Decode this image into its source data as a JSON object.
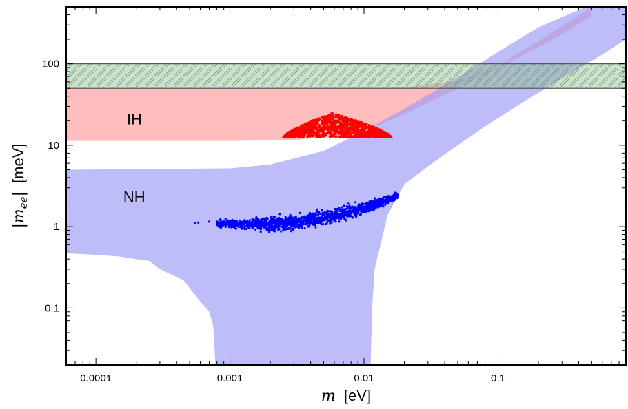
{
  "chart_data": {
    "type": "scatter",
    "xscale": "log",
    "yscale": "log",
    "xlim": [
      6e-05,
      0.9
    ],
    "ylim": [
      0.02,
      500
    ],
    "xlabel_symbol": "m",
    "xlabel_unit": "[eV]",
    "ylabel_symbol": "|m",
    "ylabel_sub": "ee",
    "ylabel_close": "|",
    "ylabel_unit": "[meV]",
    "x_ticks": [
      {
        "value": 0.0001,
        "label": "0.0001"
      },
      {
        "value": 0.001,
        "label": "0.001"
      },
      {
        "value": 0.01,
        "label": "0.01"
      },
      {
        "value": 0.1,
        "label": "0.1"
      }
    ],
    "y_ticks": [
      {
        "value": 0.1,
        "label": "0.1"
      },
      {
        "value": 1,
        "label": "1"
      },
      {
        "value": 10,
        "label": "10"
      },
      {
        "value": 100,
        "label": "100"
      }
    ],
    "region_labels": [
      {
        "text": "IH",
        "x": 0.00017,
        "y": 18
      },
      {
        "text": "NH",
        "x": 0.00016,
        "y": 2.0
      }
    ],
    "bands": [
      {
        "name": "IH",
        "color": "#ff9a9a",
        "opacity": 0.65,
        "upper": [
          [
            6e-05,
            50
          ],
          [
            0.003,
            50
          ],
          [
            0.02,
            51
          ],
          [
            0.05,
            62
          ],
          [
            0.1,
            95
          ],
          [
            0.2,
            190
          ],
          [
            0.5,
            500
          ]
        ],
        "lower": [
          [
            6e-05,
            11.3
          ],
          [
            0.001,
            11.3
          ],
          [
            0.003,
            11.6
          ],
          [
            0.006,
            12.8
          ],
          [
            0.01,
            15
          ],
          [
            0.02,
            24
          ],
          [
            0.05,
            50
          ],
          [
            0.1,
            88
          ],
          [
            0.3,
            230
          ],
          [
            0.5,
            390
          ]
        ]
      },
      {
        "name": "NH",
        "color": "#9a9af8",
        "opacity": 0.65,
        "upper": [
          [
            6e-05,
            5.0
          ],
          [
            0.001,
            5.2
          ],
          [
            0.002,
            5.8
          ],
          [
            0.005,
            8.5
          ],
          [
            0.01,
            15
          ],
          [
            0.02,
            28
          ],
          [
            0.05,
            68
          ],
          [
            0.1,
            140
          ],
          [
            0.2,
            280
          ],
          [
            0.45,
            500
          ]
        ],
        "lower": [
          [
            0.9,
            200
          ],
          [
            0.6,
            130
          ],
          [
            0.4,
            88
          ],
          [
            0.25,
            55
          ],
          [
            0.15,
            33
          ],
          [
            0.08,
            17
          ],
          [
            0.05,
            10
          ],
          [
            0.03,
            5.5
          ],
          [
            0.02,
            3.3
          ],
          [
            0.015,
            1.4
          ],
          [
            0.012,
            0.3
          ],
          [
            0.0115,
            0.1
          ],
          [
            0.0112,
            0.02
          ],
          [
            0.00078,
            0.02
          ],
          [
            0.00075,
            0.06
          ],
          [
            0.0007,
            0.09
          ],
          [
            0.0006,
            0.12
          ],
          [
            0.00045,
            0.22
          ],
          [
            0.0003,
            0.3
          ],
          [
            0.00025,
            0.38
          ],
          [
            0.0002,
            0.4
          ],
          [
            0.00015,
            0.43
          ],
          [
            0.0001,
            0.45
          ],
          [
            6e-05,
            0.47
          ]
        ]
      }
    ],
    "hatched_band": {
      "y_low": 50,
      "y_high": 100,
      "color": "#8fbf8f",
      "opacity": 0.45
    },
    "series": [
      {
        "name": "IH points",
        "color": "#ff0000",
        "cluster": {
          "x_min": 0.0025,
          "x_max": 0.016,
          "y_base": 12.5,
          "y_peak": 25,
          "x_peak": 0.0058
        }
      },
      {
        "name": "NH points",
        "color": "#0000ff",
        "cluster": {
          "x_min": 0.0008,
          "x_max": 0.018,
          "y_start": 1.1,
          "y_end": 2.4,
          "spread": 0.12,
          "outliers": [
            [
              0.00055,
              1.1
            ],
            [
              0.00058,
              1.12
            ],
            [
              0.0007,
              1.15
            ]
          ]
        }
      }
    ]
  }
}
